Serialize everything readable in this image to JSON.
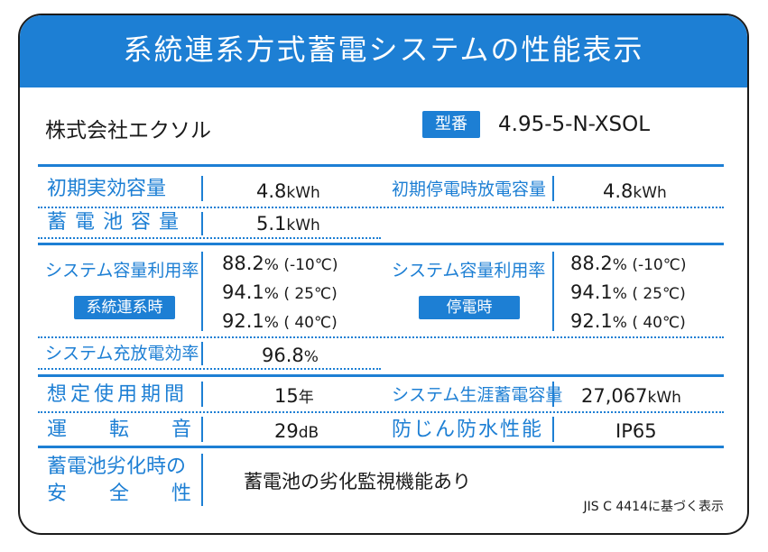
{
  "title": "系統連系方式蓄電システムの性能表示",
  "company": "株式会社エクソル",
  "model_label": "型番",
  "model_value": "4.95-5-N-XSOL",
  "rows": {
    "initial_capacity": {
      "label": "初期実効容量",
      "value": "4.8",
      "unit": "kWh"
    },
    "initial_outage_capacity": {
      "label": "初期停電時放電容量",
      "value": "4.8",
      "unit": "kWh"
    },
    "battery_capacity": {
      "label": "蓄電池容量",
      "value": "5.1",
      "unit": "kWh"
    },
    "utilization_grid": {
      "label": "システム容量利用率",
      "badge": "系統連系時",
      "values": [
        {
          "v": "88.2",
          "u": "% (-10℃)"
        },
        {
          "v": "94.1",
          "u": "% ( 25℃)"
        },
        {
          "v": "92.1",
          "u": "% ( 40℃)"
        }
      ]
    },
    "utilization_outage": {
      "label": "システム容量利用率",
      "badge": "停電時",
      "values": [
        {
          "v": "88.2",
          "u": "% (-10℃)"
        },
        {
          "v": "94.1",
          "u": "% ( 25℃)"
        },
        {
          "v": "92.1",
          "u": "% ( 40℃)"
        }
      ]
    },
    "efficiency": {
      "label": "システム充放電効率",
      "value": "96.8",
      "unit": "%"
    },
    "service_life": {
      "label": "想定使用期間",
      "value": "15",
      "unit": "年"
    },
    "lifetime_storage": {
      "label": "システム生涯蓄電容量",
      "value": "27,067",
      "unit": "kWh"
    },
    "noise": {
      "label_chars": [
        "運",
        "転",
        "音"
      ],
      "value": "29",
      "unit": "dB"
    },
    "ingress": {
      "label": "防じん防水性能",
      "value": "IP65"
    },
    "degradation_safety": {
      "label_line1": "蓄電池劣化時の",
      "label_line2_chars": [
        "安",
        "全",
        "性"
      ],
      "value": "蓄電池の劣化監視機能あり"
    }
  },
  "footnote": "JIS C 4414に基づく表示"
}
